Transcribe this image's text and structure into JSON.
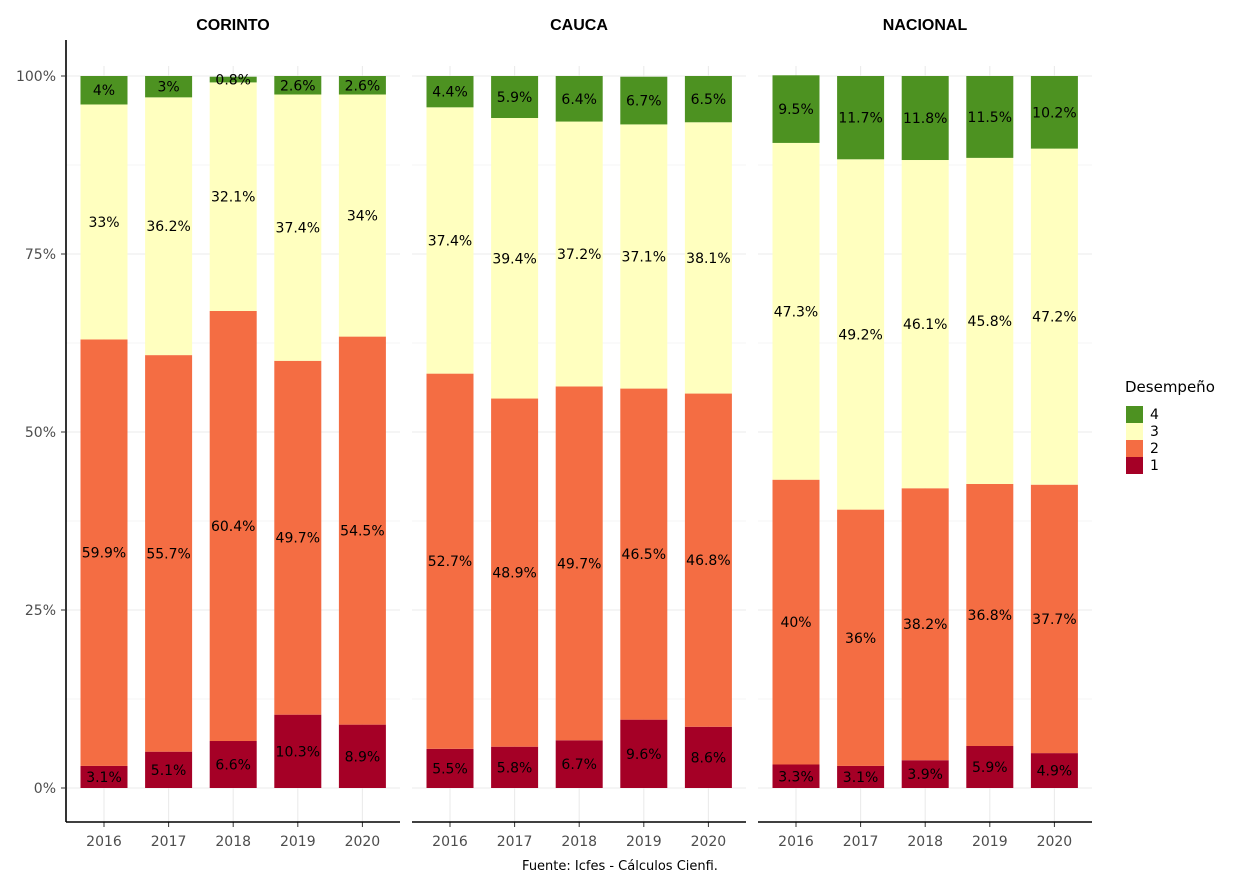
{
  "chart_data": {
    "type": "bar",
    "stacked": true,
    "percent_scale": true,
    "y_ticks": [
      "0%",
      "25%",
      "50%",
      "75%",
      "100%"
    ],
    "ylim": [
      0,
      100
    ],
    "grid": true,
    "legend": {
      "title": "Desempeño",
      "placement": "right",
      "entries": [
        "4",
        "3",
        "2",
        "1"
      ]
    },
    "colors": {
      "1": "#a50026",
      "2": "#f46d43",
      "3": "#ffffbf",
      "4": "#4d9221"
    },
    "caption": "Fuente: Icfes - Cálculos Cienfi.",
    "panels": [
      {
        "title": "CORINTO",
        "categories": [
          "2016",
          "2017",
          "2018",
          "2019",
          "2020"
        ],
        "series": [
          {
            "name": "1",
            "values": [
              3.1,
              5.1,
              6.6,
              10.3,
              8.9
            ],
            "labels": [
              "3.1%",
              "5.1%",
              "6.6%",
              "10.3%",
              "8.9%"
            ]
          },
          {
            "name": "2",
            "values": [
              59.9,
              55.7,
              60.4,
              49.7,
              54.5
            ],
            "labels": [
              "59.9%",
              "55.7%",
              "60.4%",
              "49.7%",
              "54.5%"
            ]
          },
          {
            "name": "3",
            "values": [
              33,
              36.2,
              32.1,
              37.4,
              34
            ],
            "labels": [
              "33%",
              "36.2%",
              "32.1%",
              "37.4%",
              "34%"
            ]
          },
          {
            "name": "4",
            "values": [
              4,
              3,
              0.8,
              2.6,
              2.6
            ],
            "labels": [
              "4%",
              "3%",
              "0.8%",
              "2.6%",
              "2.6%"
            ]
          }
        ]
      },
      {
        "title": "CAUCA",
        "categories": [
          "2016",
          "2017",
          "2018",
          "2019",
          "2020"
        ],
        "series": [
          {
            "name": "1",
            "values": [
              5.5,
              5.8,
              6.7,
              9.6,
              8.6
            ],
            "labels": [
              "5.5%",
              "5.8%",
              "6.7%",
              "9.6%",
              "8.6%"
            ]
          },
          {
            "name": "2",
            "values": [
              52.7,
              48.9,
              49.7,
              46.5,
              46.8
            ],
            "labels": [
              "52.7%",
              "48.9%",
              "49.7%",
              "46.5%",
              "46.8%"
            ]
          },
          {
            "name": "3",
            "values": [
              37.4,
              39.4,
              37.2,
              37.1,
              38.1
            ],
            "labels": [
              "37.4%",
              "39.4%",
              "37.2%",
              "37.1%",
              "38.1%"
            ]
          },
          {
            "name": "4",
            "values": [
              4.4,
              5.9,
              6.4,
              6.7,
              6.5
            ],
            "labels": [
              "4.4%",
              "5.9%",
              "6.4%",
              "6.7%",
              "6.5%"
            ]
          }
        ]
      },
      {
        "title": "NACIONAL",
        "categories": [
          "2016",
          "2017",
          "2018",
          "2019",
          "2020"
        ],
        "series": [
          {
            "name": "1",
            "values": [
              3.3,
              3.1,
              3.9,
              5.9,
              4.9
            ],
            "labels": [
              "3.3%",
              "3.1%",
              "3.9%",
              "5.9%",
              "4.9%"
            ]
          },
          {
            "name": "2",
            "values": [
              40,
              36,
              38.2,
              36.8,
              37.7
            ],
            "labels": [
              "40%",
              "36%",
              "38.2%",
              "36.8%",
              "37.7%"
            ]
          },
          {
            "name": "3",
            "values": [
              47.3,
              49.2,
              46.1,
              45.8,
              47.2
            ],
            "labels": [
              "47.3%",
              "49.2%",
              "46.1%",
              "45.8%",
              "47.2%"
            ]
          },
          {
            "name": "4",
            "values": [
              9.5,
              11.7,
              11.8,
              11.5,
              10.2
            ],
            "labels": [
              "9.5%",
              "11.7%",
              "11.8%",
              "11.5%",
              "10.2%"
            ]
          }
        ]
      }
    ]
  }
}
